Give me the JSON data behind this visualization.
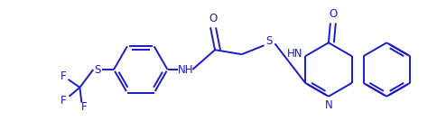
{
  "background_color": "#ffffff",
  "line_color": "#1a1acd",
  "text_color": "#1a1acd",
  "linewidth": 1.4,
  "figsize": [
    4.85,
    1.55
  ],
  "dpi": 100,
  "xlim": [
    0,
    485
  ],
  "ylim": [
    0,
    155
  ]
}
